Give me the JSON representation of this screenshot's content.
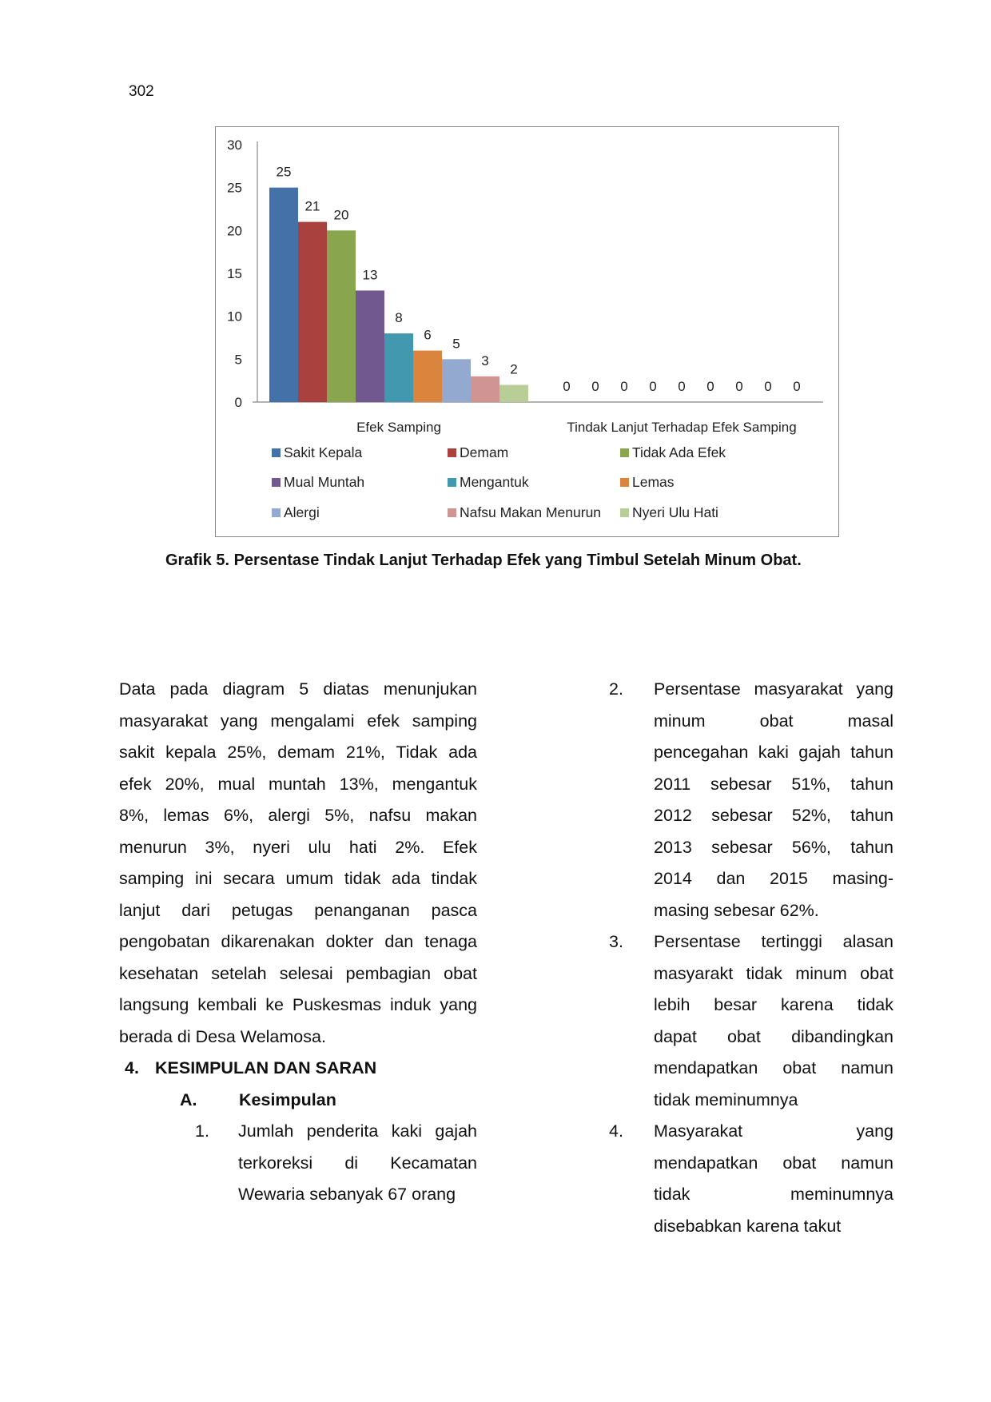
{
  "page_number": "302",
  "chart_data": {
    "type": "bar",
    "categories": [
      "Efek Samping",
      "Tindak Lanjut Terhadap Efek Samping"
    ],
    "series": [
      {
        "name": "Sakit Kepala",
        "color": "#4472A8",
        "values": [
          25,
          0
        ]
      },
      {
        "name": "Demam",
        "color": "#A9413F",
        "values": [
          21,
          0
        ]
      },
      {
        "name": "Tidak Ada Efek",
        "color": "#89A54E",
        "values": [
          20,
          0
        ]
      },
      {
        "name": "Mual Muntah",
        "color": "#71588F",
        "values": [
          13,
          0
        ]
      },
      {
        "name": "Mengantuk",
        "color": "#4198AF",
        "values": [
          8,
          0
        ]
      },
      {
        "name": "Lemas",
        "color": "#DB843D",
        "values": [
          6,
          0
        ]
      },
      {
        "name": "Alergi",
        "color": "#93A9CF",
        "values": [
          5,
          0
        ]
      },
      {
        "name": "Nafsu Makan Menurun",
        "color": "#D09493",
        "values": [
          3,
          0
        ]
      },
      {
        "name": "Nyeri Ulu Hati",
        "color": "#B9CD96",
        "values": [
          2,
          0
        ]
      }
    ],
    "yticks": [
      "0",
      "5",
      "10",
      "15",
      "20",
      "25",
      "30"
    ],
    "ylim": [
      0,
      30
    ],
    "legend_position": "bottom",
    "grid": false
  },
  "caption": "Grafik 5. Persentase Tindak Lanjut Terhadap Efek yang Timbul Setelah Minum Obat.",
  "left_column": {
    "paragraph_lines": [
      "Data pada diagram 5 diatas menunjukan",
      "masyarakat yang mengalami efek samping",
      "sakit kepala 25%, demam 21%, Tidak ada",
      "efek 20%, mual muntah 13%, mengantuk",
      "8%, lemas 6%, alergi 5%, nafsu makan",
      "menurun 3%, nyeri ulu hati 2%. Efek",
      "samping ini secara umum tidak ada tindak",
      "lanjut dari petugas penanganan pasca",
      "pengobatan dikarenakan dokter dan tenaga",
      "kesehatan setelah selesai pembagian obat",
      "langsung kembali ke Puskesmas induk yang",
      "berada di Desa Welamosa."
    ],
    "section_number": "4.",
    "section_title": "KESIMPULAN DAN SARAN",
    "subsection_number": "A.",
    "subsection_title": "Kesimpulan",
    "item1_number": "1.",
    "item1_lines": [
      "Jumlah penderita kaki gajah",
      "terkoreksi di Kecamatan",
      "Wewaria sebanyak 67 orang"
    ]
  },
  "right_column": {
    "items": [
      {
        "number": "2.",
        "lines": [
          "Persentase masyarakat yang",
          "minum obat masal",
          "pencegahan kaki gajah tahun",
          "2011 sebesar 51%, tahun",
          "2012 sebesar 52%, tahun",
          "2013 sebesar 56%, tahun",
          "2014 dan 2015 masing-",
          "masing sebesar 62%."
        ]
      },
      {
        "number": "3.",
        "lines": [
          "Persentase tertinggi alasan",
          "masyarakt tidak minum obat",
          "lebih besar karena tidak",
          "dapat obat dibandingkan",
          "mendapatkan obat namun",
          "tidak meminumnya"
        ]
      },
      {
        "number": "4.",
        "lines": [
          "Masyarakat yang",
          "mendapatkan obat namun",
          "tidak meminumnya",
          "disebabkan karena takut"
        ]
      }
    ]
  }
}
